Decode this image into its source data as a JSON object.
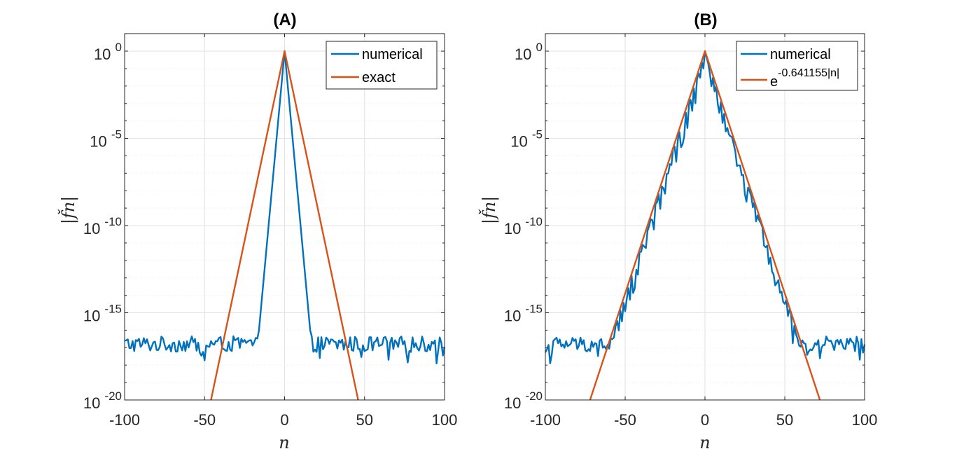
{
  "chart_data": [
    {
      "type": "line",
      "title": "(A)",
      "xlabel": "n",
      "ylabel": "|f̌n|",
      "xlim": [
        -100,
        100
      ],
      "ylim": [
        1e-20,
        10
      ],
      "yscale": "log",
      "grid": true,
      "minor_grid": true,
      "legend_position": "top-right",
      "x_ticks": [
        -100,
        -50,
        0,
        50,
        100
      ],
      "x_tick_labels": [
        "-100",
        "-50",
        "0",
        "50",
        "100"
      ],
      "y_ticks": [
        0,
        -5,
        -10,
        -15,
        -20
      ],
      "y_tick_labels": [
        {
          "base": "10",
          "exp": "0"
        },
        {
          "base": "10",
          "exp": "-5"
        },
        {
          "base": "10",
          "exp": "-10"
        },
        {
          "base": "10",
          "exp": "-15"
        },
        {
          "base": "10",
          "exp": "-20"
        }
      ],
      "series": [
        {
          "name": "numerical",
          "color": "#0072BD",
          "central_decay_rate": 1.0,
          "x_range": [
            -100,
            100
          ],
          "noise_floor_log10": -16.8
        },
        {
          "name": "exact",
          "color": "#D95319",
          "x": [
            -46,
            0,
            46
          ],
          "log10_y": [
            -20.0,
            0,
            -20.0
          ]
        }
      ]
    },
    {
      "type": "line",
      "title": "(B)",
      "xlabel": "n",
      "ylabel": "|f̌n|",
      "xlim": [
        -100,
        100
      ],
      "ylim": [
        1e-20,
        10
      ],
      "yscale": "log",
      "grid": true,
      "minor_grid": true,
      "legend_position": "top-right",
      "x_ticks": [
        -100,
        -50,
        0,
        50,
        100
      ],
      "x_tick_labels": [
        "-100",
        "-50",
        "0",
        "50",
        "100"
      ],
      "y_ticks": [
        0,
        -5,
        -10,
        -15,
        -20
      ],
      "y_tick_labels": [
        {
          "base": "10",
          "exp": "0"
        },
        {
          "base": "10",
          "exp": "-5"
        },
        {
          "base": "10",
          "exp": "-10"
        },
        {
          "base": "10",
          "exp": "-15"
        },
        {
          "base": "10",
          "exp": "-20"
        }
      ],
      "series": [
        {
          "name": "numerical",
          "color": "#0072BD",
          "central_decay_rate": 0.2784,
          "x_range": [
            -100,
            100
          ],
          "noise_floor_log10": -16.8
        },
        {
          "name": "e-0.641155|n|",
          "legend_base": "e",
          "legend_exp": "-0.641155|n|",
          "color": "#D95319",
          "x": [
            -72,
            0,
            72
          ],
          "log10_y": [
            -20.05,
            0,
            -20.05
          ]
        }
      ]
    }
  ]
}
